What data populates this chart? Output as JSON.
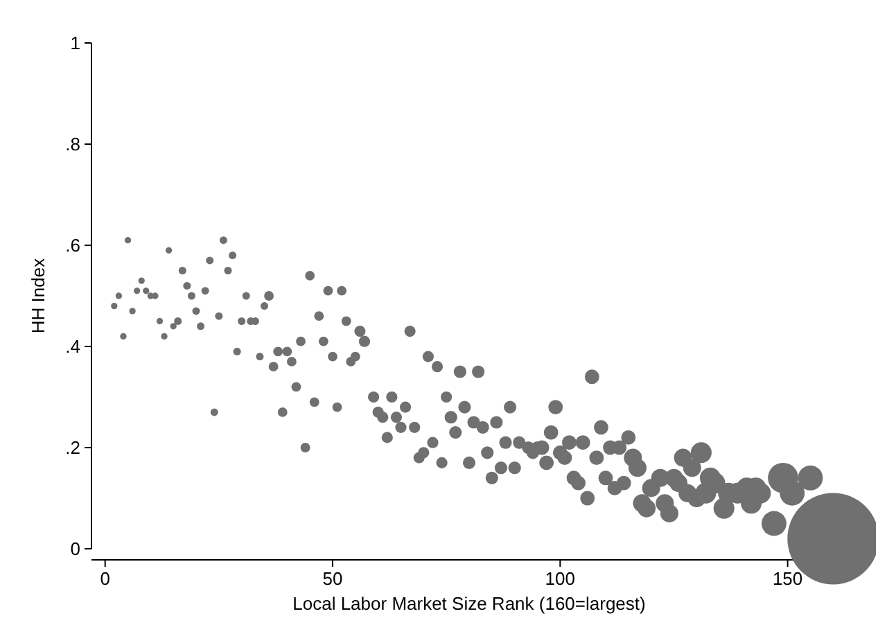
{
  "chart_data": {
    "type": "bubble",
    "xlabel": "Local Labor Market Size Rank (160=largest)",
    "ylabel": "HH Index",
    "xlim": [
      -3,
      163
    ],
    "ylim": [
      0,
      1
    ],
    "xticks": [
      0,
      50,
      100,
      150
    ],
    "yticks": [
      0,
      {
        "value": 0.2,
        "label": ".2"
      },
      {
        "value": 0.4,
        "label": ".4"
      },
      {
        "value": 0.6,
        "label": ".6"
      },
      {
        "value": 0.8,
        "label": ".8"
      },
      1
    ],
    "series": [
      {
        "color": "#707070",
        "x": [
          2,
          3,
          4,
          5,
          6,
          7,
          8,
          9,
          10,
          11,
          12,
          13,
          14,
          15,
          16,
          17,
          18,
          19,
          20,
          21,
          22,
          23,
          24,
          25,
          26,
          27,
          28,
          29,
          30,
          31,
          32,
          33,
          34,
          35,
          36,
          37,
          38,
          39,
          40,
          41,
          42,
          43,
          44,
          45,
          46,
          47,
          48,
          49,
          50,
          51,
          52,
          53,
          54,
          55,
          56,
          57,
          59,
          60,
          61,
          62,
          63,
          64,
          65,
          66,
          67,
          68,
          69,
          70,
          71,
          72,
          73,
          74,
          75,
          76,
          77,
          78,
          79,
          80,
          81,
          82,
          83,
          84,
          85,
          86,
          87,
          88,
          89,
          90,
          91,
          93,
          94,
          95,
          96,
          97,
          98,
          99,
          100,
          101,
          102,
          103,
          104,
          105,
          106,
          107,
          108,
          109,
          110,
          111,
          112,
          113,
          114,
          115,
          116,
          117,
          118,
          119,
          120,
          122,
          123,
          124,
          125,
          126,
          127,
          128,
          129,
          130,
          131,
          132,
          133,
          134,
          136,
          137,
          139,
          141,
          142,
          143,
          144,
          147,
          149,
          151,
          155,
          160
        ],
        "values": [
          0.48,
          0.5,
          0.42,
          0.61,
          0.47,
          0.51,
          0.53,
          0.51,
          0.5,
          0.5,
          0.45,
          0.42,
          0.59,
          0.44,
          0.45,
          0.55,
          0.52,
          0.5,
          0.47,
          0.44,
          0.51,
          0.57,
          0.27,
          0.46,
          0.61,
          0.55,
          0.58,
          0.39,
          0.45,
          0.5,
          0.45,
          0.45,
          0.38,
          0.48,
          0.5,
          0.36,
          0.39,
          0.27,
          0.39,
          0.37,
          0.32,
          0.41,
          0.2,
          0.54,
          0.29,
          0.46,
          0.41,
          0.51,
          0.38,
          0.28,
          0.51,
          0.45,
          0.37,
          0.38,
          0.43,
          0.41,
          0.3,
          0.27,
          0.26,
          0.22,
          0.3,
          0.26,
          0.24,
          0.28,
          0.43,
          0.24,
          0.18,
          0.19,
          0.38,
          0.21,
          0.36,
          0.17,
          0.3,
          0.26,
          0.23,
          0.35,
          0.28,
          0.17,
          0.25,
          0.35,
          0.24,
          0.19,
          0.14,
          0.25,
          0.16,
          0.21,
          0.28,
          0.16,
          0.21,
          0.2,
          0.19,
          0.2,
          0.2,
          0.17,
          0.23,
          0.28,
          0.19,
          0.18,
          0.21,
          0.14,
          0.13,
          0.21,
          0.1,
          0.34,
          0.18,
          0.24,
          0.14,
          0.2,
          0.12,
          0.2,
          0.13,
          0.22,
          0.18,
          0.16,
          0.09,
          0.08,
          0.12,
          0.14,
          0.09,
          0.07,
          0.14,
          0.13,
          0.18,
          0.11,
          0.16,
          0.1,
          0.19,
          0.11,
          0.14,
          0.13,
          0.08,
          0.11,
          0.11,
          0.12,
          0.09,
          0.12,
          0.11,
          0.05,
          0.14,
          0.11,
          0.14,
          0.02
        ],
        "sizes": [
          0.005,
          0.005,
          0.005,
          0.005,
          0.005,
          0.005,
          0.005,
          0.005,
          0.005,
          0.005,
          0.005,
          0.005,
          0.005,
          0.005,
          0.007,
          0.007,
          0.007,
          0.007,
          0.007,
          0.007,
          0.007,
          0.007,
          0.007,
          0.007,
          0.007,
          0.007,
          0.007,
          0.007,
          0.007,
          0.007,
          0.007,
          0.007,
          0.007,
          0.007,
          0.011,
          0.011,
          0.011,
          0.011,
          0.011,
          0.011,
          0.011,
          0.011,
          0.011,
          0.011,
          0.011,
          0.011,
          0.011,
          0.011,
          0.011,
          0.011,
          0.011,
          0.011,
          0.011,
          0.011,
          0.015,
          0.015,
          0.015,
          0.015,
          0.015,
          0.015,
          0.015,
          0.015,
          0.015,
          0.015,
          0.015,
          0.015,
          0.015,
          0.015,
          0.015,
          0.015,
          0.015,
          0.015,
          0.015,
          0.019,
          0.019,
          0.019,
          0.019,
          0.019,
          0.019,
          0.019,
          0.019,
          0.019,
          0.019,
          0.019,
          0.019,
          0.019,
          0.019,
          0.019,
          0.019,
          0.019,
          0.019,
          0.019,
          0.025,
          0.025,
          0.025,
          0.025,
          0.025,
          0.025,
          0.025,
          0.025,
          0.025,
          0.025,
          0.025,
          0.025,
          0.025,
          0.025,
          0.025,
          0.025,
          0.025,
          0.025,
          0.025,
          0.025,
          0.039,
          0.039,
          0.039,
          0.039,
          0.039,
          0.039,
          0.039,
          0.039,
          0.039,
          0.039,
          0.039,
          0.039,
          0.039,
          0.039,
          0.052,
          0.052,
          0.052,
          0.052,
          0.052,
          0.052,
          0.052,
          0.052,
          0.052,
          0.052,
          0.052,
          0.074,
          0.11,
          0.074,
          0.074,
          1
        ]
      }
    ]
  }
}
